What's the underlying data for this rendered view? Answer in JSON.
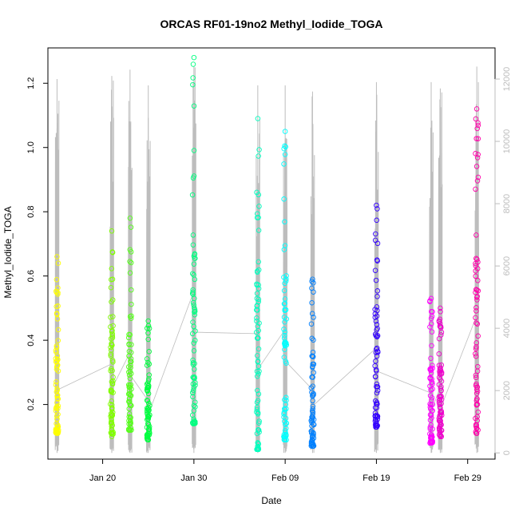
{
  "chart_data": {
    "type": "scatter",
    "title": "ORCAS RF01-19no2 Methyl_Iodide_TOGA",
    "xlabel": "Date",
    "ylabel": "Methyl_Iodide_TOGA",
    "xlim": [
      "2016-01-14",
      "2016-03-03"
    ],
    "ylim": [
      0.03,
      1.31
    ],
    "y2lim": [
      -200,
      13000
    ],
    "x_tick_labels": [
      {
        "date": "2016-01-20",
        "label": "Jan 20"
      },
      {
        "date": "2016-01-30",
        "label": "Jan 30"
      },
      {
        "date": "2016-02-09",
        "label": "Feb 09"
      },
      {
        "date": "2016-02-19",
        "label": "Feb 19"
      },
      {
        "date": "2016-02-29",
        "label": "Feb 29"
      }
    ],
    "y_ticks": [
      0.2,
      0.4,
      0.6,
      0.8,
      1.0,
      1.2
    ],
    "y_tick_labels": [
      "0.2",
      "0.4",
      "0.6",
      "0.8",
      "1.0",
      "1.2"
    ],
    "y2_ticks": [
      0,
      2000,
      4000,
      6000,
      8000,
      10000,
      12000
    ],
    "y2_tick_labels": [
      "0",
      "2000",
      "4000",
      "6000",
      "8000",
      "10000",
      "12000"
    ],
    "altitude_color": "#bdbdbd",
    "flights": [
      {
        "date": "2016-01-15",
        "color": "#ffff00",
        "ymin": 0.11,
        "ymax": 0.66,
        "alt_max": 12000
      },
      {
        "date": "2016-01-21",
        "color": "#80ff00",
        "ymin": 0.1,
        "ymax": 0.74,
        "alt_max": 12100
      },
      {
        "date": "2016-01-23",
        "color": "#55ff1a",
        "ymin": 0.12,
        "ymax": 0.78,
        "alt_max": 12300
      },
      {
        "date": "2016-01-25",
        "color": "#00ff40",
        "ymin": 0.09,
        "ymax": 0.46,
        "alt_max": 11800
      },
      {
        "date": "2016-01-30",
        "color": "#00ff80",
        "ymin": 0.14,
        "ymax": 1.28,
        "alt_max": 12400
      },
      {
        "date": "2016-02-06",
        "color": "#00ffbf",
        "ymin": 0.06,
        "ymax": 1.09,
        "alt_max": 11800
      },
      {
        "date": "2016-02-09",
        "color": "#00ffff",
        "ymin": 0.09,
        "ymax": 1.05,
        "alt_max": 11800
      },
      {
        "date": "2016-02-12",
        "color": "#0080ff",
        "ymin": 0.07,
        "ymax": 0.59,
        "alt_max": 11600
      },
      {
        "date": "2016-02-19",
        "color": "#3300ff",
        "ymin": 0.13,
        "ymax": 0.82,
        "alt_max": 11900
      },
      {
        "date": "2016-02-25",
        "color": "#ff00ff",
        "ymin": 0.08,
        "ymax": 0.53,
        "alt_max": 11900
      },
      {
        "date": "2016-02-26",
        "color": "#ee00cc",
        "ymin": 0.1,
        "ymax": 0.5,
        "alt_max": 11700
      },
      {
        "date": "2016-03-01",
        "color": "#ff00aa",
        "ymin": 0.11,
        "ymax": 1.12,
        "alt_max": 12400
      }
    ]
  }
}
